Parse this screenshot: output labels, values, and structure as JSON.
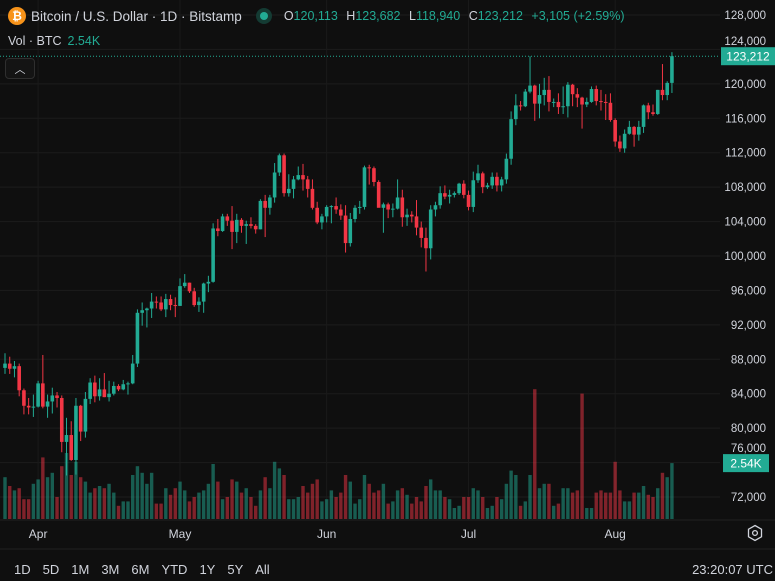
{
  "header": {
    "symbol_title": "Bitcoin / U.S. Dollar · 1D · Bitstamp",
    "icon": "bitcoin-icon",
    "open_label": "O",
    "open": "120,113",
    "high_label": "H",
    "high": "123,682",
    "low_label": "L",
    "low": "118,940",
    "close_label": "C",
    "close": "123,212",
    "change": "+3,105 (+2.59%)",
    "volume_label": "Vol · BTC",
    "volume_value": "2.54K",
    "collapse_icon": "chevron-up-icon"
  },
  "price_axis": {
    "last_price_label": "123,212",
    "volume_label": "2.54K"
  },
  "bottom_toolbar": {
    "periods": [
      "1D",
      "5D",
      "1M",
      "3M",
      "6M",
      "YTD",
      "1Y",
      "5Y",
      "All"
    ],
    "clock": "23:20:07 UTC",
    "settings_icon": "gear-icon"
  },
  "colors": {
    "up": "#22ab94",
    "down": "#f23645",
    "background": "#0f0f0f",
    "bitcoin": "#f7931a"
  },
  "chart_data": {
    "type": "candlestick",
    "title": "Bitcoin / U.S. Dollar · 1D · Bitstamp",
    "ylim": [
      70000,
      129000
    ],
    "y_ticks": [
      72000,
      76000,
      80000,
      84000,
      88000,
      92000,
      96000,
      100000,
      104000,
      108000,
      112000,
      116000,
      120000,
      124000,
      128000
    ],
    "y_tick_labels": [
      "72,000",
      "76,000",
      "80,000",
      "84,000",
      "88,000",
      "92,000",
      "96,000",
      "100,000",
      "104,000",
      "108,000",
      "112,000",
      "116,000",
      "120,000",
      "124,000",
      "128,000"
    ],
    "x_tick_labels": [
      "Apr",
      "May",
      "Jun",
      "Jul",
      "Aug"
    ],
    "x_tick_dates": [
      "Apr 1",
      "May 1",
      "Jun 1",
      "Jul 1",
      "Aug 1"
    ],
    "grid": true,
    "volume_unit": "K BTC",
    "candles_columns": [
      "date",
      "open",
      "high",
      "low",
      "close",
      "volume"
    ],
    "candles": [
      [
        "Mar 25",
        87000,
        88700,
        86300,
        87500,
        1.9
      ],
      [
        "Mar 26",
        87500,
        88300,
        86300,
        86900,
        1.5
      ],
      [
        "Mar 27",
        86900,
        87800,
        85900,
        87200,
        1.3
      ],
      [
        "Mar 28",
        87200,
        87500,
        83700,
        84400,
        1.4
      ],
      [
        "Mar 29",
        84400,
        84600,
        81600,
        82600,
        0.9
      ],
      [
        "Mar 30",
        82600,
        83500,
        81600,
        82400,
        0.9
      ],
      [
        "Mar 31",
        82400,
        83900,
        81300,
        82500,
        1.6
      ],
      [
        "Apr 1",
        82500,
        85500,
        82400,
        85200,
        1.8
      ],
      [
        "Apr 2",
        85200,
        88500,
        82300,
        82500,
        2.8
      ],
      [
        "Apr 3",
        82500,
        83900,
        81200,
        83100,
        1.9
      ],
      [
        "Apr 4",
        83100,
        84700,
        81700,
        83800,
        2.1
      ],
      [
        "Apr 5",
        83800,
        84200,
        82400,
        83500,
        1.0
      ],
      [
        "Apr 6",
        83500,
        83800,
        77200,
        78400,
        2.4
      ],
      [
        "Apr 7",
        78400,
        81200,
        74500,
        79200,
        3.0
      ],
      [
        "Apr 8",
        79200,
        80800,
        76200,
        76300,
        2.0
      ],
      [
        "Apr 9",
        76300,
        83500,
        74600,
        82600,
        2.6
      ],
      [
        "Apr 10",
        82600,
        82700,
        78500,
        79600,
        1.9
      ],
      [
        "Apr 11",
        79600,
        84200,
        78900,
        83400,
        1.7
      ],
      [
        "Apr 12",
        83400,
        85800,
        82800,
        85300,
        1.2
      ],
      [
        "Apr 13",
        85300,
        86100,
        83000,
        83700,
        1.4
      ],
      [
        "Apr 14",
        83700,
        85800,
        83200,
        84500,
        1.5
      ],
      [
        "Apr 15",
        84500,
        86400,
        83600,
        83600,
        1.4
      ],
      [
        "Apr 16",
        83600,
        85500,
        83100,
        84000,
        1.6
      ],
      [
        "Apr 17",
        84000,
        85400,
        83800,
        84900,
        1.2
      ],
      [
        "Apr 18",
        84900,
        85100,
        84300,
        84500,
        0.6
      ],
      [
        "Apr 19",
        84500,
        85600,
        84400,
        85100,
        0.8
      ],
      [
        "Apr 20",
        85100,
        85400,
        83900,
        85200,
        0.8
      ],
      [
        "Apr 21",
        85200,
        88500,
        85100,
        87500,
        2.0
      ],
      [
        "Apr 22",
        87500,
        93800,
        87100,
        93400,
        2.4
      ],
      [
        "Apr 23",
        93400,
        94600,
        91900,
        93700,
        2.1
      ],
      [
        "Apr 24",
        93700,
        94000,
        91700,
        93900,
        1.6
      ],
      [
        "Apr 25",
        93900,
        95700,
        92800,
        94700,
        2.1
      ],
      [
        "Apr 26",
        94700,
        95300,
        93900,
        94600,
        0.7
      ],
      [
        "Apr 27",
        94600,
        95300,
        93600,
        93800,
        0.7
      ],
      [
        "Apr 28",
        93800,
        95600,
        92900,
        95000,
        1.4
      ],
      [
        "Apr 29",
        95000,
        95500,
        93700,
        94300,
        1.1
      ],
      [
        "Apr 30",
        94300,
        95200,
        92900,
        94200,
        1.4
      ],
      [
        "May 1",
        94200,
        97400,
        94200,
        96500,
        1.7
      ],
      [
        "May 2",
        96500,
        97900,
        96300,
        96900,
        1.3
      ],
      [
        "May 3",
        96900,
        96900,
        95700,
        95900,
        0.8
      ],
      [
        "May 4",
        95900,
        96300,
        94100,
        94300,
        1.0
      ],
      [
        "May 5",
        94300,
        95200,
        93500,
        94700,
        1.2
      ],
      [
        "May 6",
        94700,
        96900,
        93400,
        96800,
        1.3
      ],
      [
        "May 7",
        96800,
        97700,
        95800,
        97000,
        1.6
      ],
      [
        "May 8",
        97000,
        103800,
        96900,
        103200,
        2.5
      ],
      [
        "May 9",
        103200,
        104300,
        102300,
        102900,
        1.7
      ],
      [
        "May 10",
        102900,
        104900,
        102800,
        104600,
        0.9
      ],
      [
        "May 11",
        104600,
        104900,
        103500,
        104100,
        1.0
      ],
      [
        "May 12",
        104100,
        105800,
        100800,
        102800,
        1.8
      ],
      [
        "May 13",
        102800,
        104900,
        101500,
        104200,
        1.7
      ],
      [
        "May 14",
        104200,
        104400,
        102700,
        103500,
        1.2
      ],
      [
        "May 15",
        103500,
        104100,
        101400,
        103700,
        1.4
      ],
      [
        "May 16",
        103700,
        104500,
        103200,
        103500,
        1.0
      ],
      [
        "May 17",
        103500,
        103700,
        102600,
        103100,
        0.6
      ],
      [
        "May 18",
        103100,
        106600,
        103100,
        106400,
        1.3
      ],
      [
        "May 19",
        106400,
        107100,
        102200,
        105600,
        1.9
      ],
      [
        "May 20",
        105600,
        107100,
        104800,
        106800,
        1.4
      ],
      [
        "May 21",
        106800,
        110800,
        106200,
        109700,
        2.6
      ],
      [
        "May 22",
        109700,
        111900,
        109300,
        111700,
        2.3
      ],
      [
        "May 23",
        111700,
        111900,
        106900,
        107300,
        2.0
      ],
      [
        "May 24",
        107300,
        109500,
        106900,
        107800,
        0.9
      ],
      [
        "May 25",
        107800,
        109300,
        106700,
        108900,
        0.9
      ],
      [
        "May 26",
        108900,
        110400,
        108800,
        109400,
        1.0
      ],
      [
        "May 27",
        109400,
        110700,
        107600,
        108900,
        1.5
      ],
      [
        "May 28",
        108900,
        109300,
        106800,
        107800,
        1.2
      ],
      [
        "May 29",
        107800,
        108900,
        105400,
        105600,
        1.6
      ],
      [
        "May 30",
        105600,
        106300,
        103700,
        103900,
        1.8
      ],
      [
        "May 31",
        103900,
        104900,
        103100,
        104600,
        0.8
      ],
      [
        "Jun 1",
        104600,
        105900,
        103900,
        105700,
        0.9
      ],
      [
        "Jun 2",
        105700,
        105900,
        103800,
        105800,
        1.3
      ],
      [
        "Jun 3",
        105800,
        106800,
        104900,
        105400,
        1.0
      ],
      [
        "Jun 4",
        105400,
        106000,
        104200,
        104700,
        1.2
      ],
      [
        "Jun 5",
        104700,
        105900,
        100400,
        101500,
        2.0
      ],
      [
        "Jun 6",
        101500,
        105000,
        101100,
        104300,
        1.7
      ],
      [
        "Jun 7",
        104300,
        105900,
        103900,
        105600,
        0.7
      ],
      [
        "Jun 8",
        105600,
        106400,
        104900,
        105700,
        0.9
      ],
      [
        "Jun 9",
        105700,
        110500,
        105400,
        110300,
        2.0
      ],
      [
        "Jun 10",
        110300,
        110600,
        108300,
        110200,
        1.6
      ],
      [
        "Jun 11",
        110200,
        110400,
        108100,
        108600,
        1.2
      ],
      [
        "Jun 12",
        108600,
        108800,
        105700,
        105600,
        1.3
      ],
      [
        "Jun 13",
        105600,
        106200,
        102700,
        106000,
        1.6
      ],
      [
        "Jun 14",
        106000,
        106200,
        104400,
        105400,
        0.7
      ],
      [
        "Jun 15",
        105400,
        106100,
        104500,
        105500,
        0.8
      ],
      [
        "Jun 16",
        105500,
        108900,
        105400,
        106800,
        1.3
      ],
      [
        "Jun 17",
        106800,
        107700,
        103400,
        104500,
        1.4
      ],
      [
        "Jun 18",
        104500,
        105500,
        103500,
        104800,
        1.1
      ],
      [
        "Jun 19",
        104800,
        105200,
        103900,
        104600,
        0.7
      ],
      [
        "Jun 20",
        104600,
        106500,
        102400,
        103300,
        1.0
      ],
      [
        "Jun 21",
        103300,
        104000,
        101000,
        102100,
        0.8
      ],
      [
        "Jun 22",
        102100,
        103300,
        98200,
        100900,
        1.5
      ],
      [
        "Jun 23",
        100900,
        105900,
        99600,
        105400,
        1.8
      ],
      [
        "Jun 24",
        105400,
        106300,
        104600,
        105900,
        1.3
      ],
      [
        "Jun 25",
        105900,
        108100,
        105500,
        107300,
        1.3
      ],
      [
        "Jun 26",
        107300,
        108200,
        106600,
        106900,
        1.0
      ],
      [
        "Jun 27",
        106900,
        107700,
        106100,
        107100,
        0.9
      ],
      [
        "Jun 28",
        107100,
        107500,
        106800,
        107300,
        0.5
      ],
      [
        "Jun 29",
        107300,
        108500,
        107100,
        108400,
        0.6
      ],
      [
        "Jun 30",
        108400,
        108800,
        106700,
        107100,
        1.0
      ],
      [
        "Jul 1",
        107100,
        107600,
        105300,
        105700,
        1.0
      ],
      [
        "Jul 2",
        105700,
        109800,
        105100,
        108800,
        1.4
      ],
      [
        "Jul 3",
        108800,
        110600,
        108500,
        109600,
        1.3
      ],
      [
        "Jul 4",
        109600,
        109800,
        107300,
        108000,
        1.0
      ],
      [
        "Jul 5",
        108000,
        108500,
        107800,
        108200,
        0.5
      ],
      [
        "Jul 6",
        108200,
        109700,
        107800,
        109200,
        0.6
      ],
      [
        "Jul 7",
        109200,
        109700,
        107500,
        108200,
        1.0
      ],
      [
        "Jul 8",
        108200,
        109200,
        107500,
        108900,
        0.9
      ],
      [
        "Jul 9",
        108900,
        111900,
        108400,
        111300,
        1.6
      ],
      [
        "Jul 10",
        111300,
        116800,
        110600,
        115900,
        2.2
      ],
      [
        "Jul 11",
        115900,
        118800,
        115200,
        117500,
        2.0
      ],
      [
        "Jul 12",
        117500,
        118000,
        116900,
        117400,
        0.6
      ],
      [
        "Jul 13",
        117400,
        119400,
        117300,
        119100,
        0.8
      ],
      [
        "Jul 14",
        119100,
        123200,
        118900,
        119800,
        2.0
      ],
      [
        "Jul 15",
        119800,
        119900,
        115700,
        117700,
        5.9
      ],
      [
        "Jul 16",
        117700,
        120000,
        116000,
        118700,
        1.4
      ],
      [
        "Jul 17",
        118700,
        120700,
        117500,
        119300,
        1.6
      ],
      [
        "Jul 18",
        119300,
        120900,
        116800,
        117900,
        1.6
      ],
      [
        "Jul 19",
        117900,
        118300,
        117300,
        117900,
        0.6
      ],
      [
        "Jul 20",
        117900,
        118900,
        116500,
        117300,
        0.7
      ],
      [
        "Jul 21",
        117300,
        119700,
        116500,
        117400,
        1.4
      ],
      [
        "Jul 22",
        117400,
        120200,
        116100,
        119900,
        1.4
      ],
      [
        "Jul 23",
        119900,
        120000,
        117400,
        118800,
        1.2
      ],
      [
        "Jul 24",
        118800,
        119500,
        117300,
        118400,
        1.3
      ],
      [
        "Jul 25",
        118400,
        118500,
        114800,
        117600,
        5.7
      ],
      [
        "Jul 26",
        117600,
        118400,
        117300,
        117900,
        0.5
      ],
      [
        "Jul 27",
        117900,
        119700,
        117800,
        119400,
        0.5
      ],
      [
        "Jul 28",
        119400,
        119800,
        117500,
        118000,
        1.2
      ],
      [
        "Jul 29",
        118000,
        119300,
        116900,
        117900,
        1.3
      ],
      [
        "Jul 30",
        117900,
        118800,
        115800,
        117800,
        1.2
      ],
      [
        "Jul 31",
        117800,
        118900,
        115600,
        115800,
        1.2
      ],
      [
        "Aug 1",
        115800,
        116000,
        112700,
        113300,
        2.6
      ],
      [
        "Aug 2",
        113300,
        114000,
        112100,
        112500,
        1.3
      ],
      [
        "Aug 3",
        112500,
        114700,
        112000,
        114200,
        0.8
      ],
      [
        "Aug 4",
        114200,
        115700,
        114100,
        115000,
        0.8
      ],
      [
        "Aug 5",
        115000,
        115100,
        112700,
        114100,
        1.2
      ],
      [
        "Aug 6",
        114100,
        115700,
        113400,
        115000,
        1.2
      ],
      [
        "Aug 7",
        115000,
        117600,
        114300,
        117500,
        1.5
      ],
      [
        "Aug 8",
        117500,
        117800,
        115900,
        116700,
        1.1
      ],
      [
        "Aug 9",
        116700,
        117600,
        116300,
        116500,
        1.0
      ],
      [
        "Aug 10",
        116500,
        119300,
        116400,
        119300,
        1.4
      ],
      [
        "Aug 11",
        119300,
        122300,
        118100,
        118700,
        2.1
      ],
      [
        "Aug 12",
        118700,
        120300,
        118100,
        120107,
        1.9
      ],
      [
        "Aug 13",
        120113,
        123682,
        118940,
        123212,
        2.54
      ]
    ]
  }
}
